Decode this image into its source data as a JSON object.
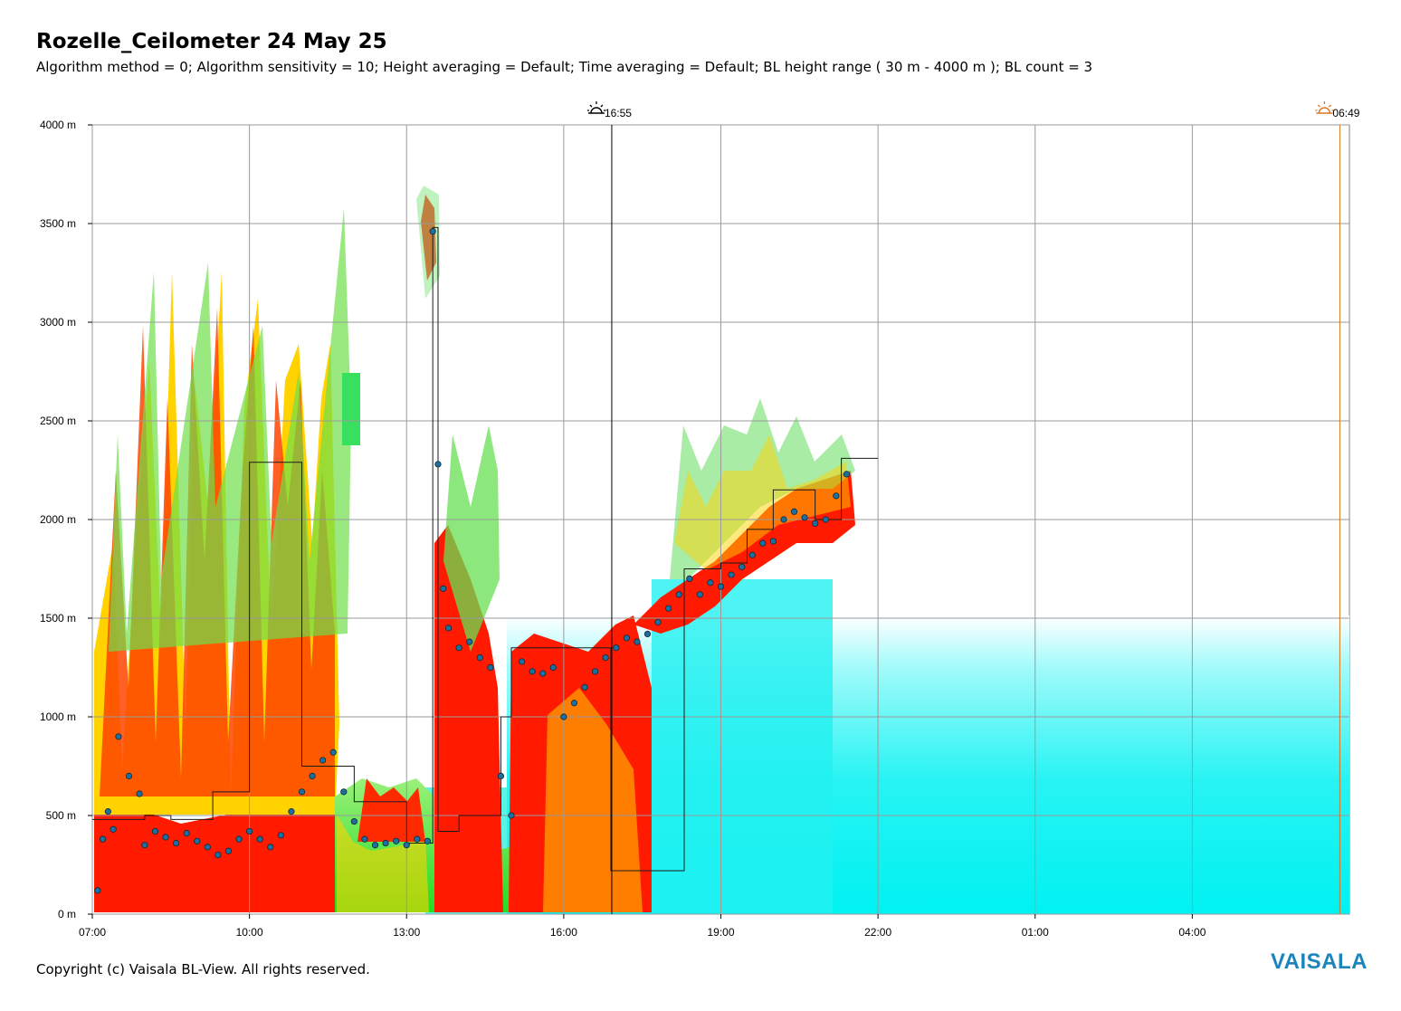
{
  "header": {
    "title": "Rozelle_Ceilometer 24 May 25",
    "subtitle": "Algorithm method = 0; Algorithm sensitivity = 10; Height averaging = Default; Time averaging = Default; BL height range ( 30 m - 4000 m ); BL count = 3"
  },
  "footer": {
    "copyright": "Copyright (c) Vaisala BL-View. All rights reserved.",
    "brand": "VAISALA"
  },
  "chart_data": {
    "type": "heatmap",
    "title": "Rozelle_Ceilometer 24 May 25",
    "xlabel": "",
    "ylabel": "",
    "x_range_hours": [
      7,
      31
    ],
    "ylim": [
      0,
      4000
    ],
    "grid": true,
    "y_ticks": [
      "0 m",
      "500 m",
      "1000 m",
      "1500 m",
      "2000 m",
      "2500 m",
      "3000 m",
      "3500 m",
      "4000 m"
    ],
    "x_ticks": [
      "07:00",
      "10:00",
      "13:00",
      "16:00",
      "19:00",
      "22:00",
      "01:00",
      "04:00"
    ],
    "x_tick_hours": [
      7,
      10,
      13,
      16,
      19,
      22,
      25,
      28
    ],
    "events": [
      {
        "label": "16:55",
        "hour": 16.917,
        "kind": "sunset",
        "color": "#000000"
      },
      {
        "label": "06:49",
        "hour": 30.817,
        "kind": "sunrise",
        "color": "#d9771e"
      }
    ],
    "colors": {
      "strong": "#ff1a00",
      "mid": "#ffd200",
      "weak": "#33e05a",
      "background": "#00f5f5",
      "point": "#1f6f9e"
    },
    "bl_height_points": [
      [
        7.1,
        120
      ],
      [
        7.2,
        380
      ],
      [
        7.3,
        520
      ],
      [
        7.4,
        430
      ],
      [
        7.5,
        900
      ],
      [
        7.7,
        700
      ],
      [
        7.9,
        610
      ],
      [
        8.0,
        350
      ],
      [
        8.2,
        420
      ],
      [
        8.4,
        390
      ],
      [
        8.6,
        360
      ],
      [
        8.8,
        410
      ],
      [
        9.0,
        370
      ],
      [
        9.2,
        340
      ],
      [
        9.4,
        300
      ],
      [
        9.6,
        320
      ],
      [
        9.8,
        380
      ],
      [
        10.0,
        420
      ],
      [
        10.2,
        380
      ],
      [
        10.4,
        340
      ],
      [
        10.6,
        400
      ],
      [
        10.8,
        520
      ],
      [
        11.0,
        620
      ],
      [
        11.2,
        700
      ],
      [
        11.4,
        780
      ],
      [
        11.6,
        820
      ],
      [
        11.8,
        620
      ],
      [
        12.0,
        470
      ],
      [
        12.2,
        380
      ],
      [
        12.4,
        350
      ],
      [
        12.6,
        360
      ],
      [
        12.8,
        370
      ],
      [
        13.0,
        350
      ],
      [
        13.2,
        380
      ],
      [
        13.4,
        370
      ],
      [
        13.5,
        3460
      ],
      [
        13.6,
        2280
      ],
      [
        13.7,
        1650
      ],
      [
        13.8,
        1450
      ],
      [
        14.0,
        1350
      ],
      [
        14.2,
        1380
      ],
      [
        14.4,
        1300
      ],
      [
        14.6,
        1250
      ],
      [
        14.8,
        700
      ],
      [
        15.0,
        500
      ],
      [
        15.2,
        1280
      ],
      [
        15.4,
        1230
      ],
      [
        15.6,
        1220
      ],
      [
        15.8,
        1250
      ],
      [
        16.0,
        1000
      ],
      [
        16.2,
        1070
      ],
      [
        16.4,
        1150
      ],
      [
        16.6,
        1230
      ],
      [
        16.8,
        1300
      ],
      [
        17.0,
        1350
      ],
      [
        17.2,
        1400
      ],
      [
        17.4,
        1380
      ],
      [
        17.6,
        1420
      ],
      [
        17.8,
        1480
      ],
      [
        18.0,
        1550
      ],
      [
        18.2,
        1620
      ],
      [
        18.4,
        1700
      ],
      [
        18.6,
        1620
      ],
      [
        18.8,
        1680
      ],
      [
        19.0,
        1660
      ],
      [
        19.2,
        1720
      ],
      [
        19.4,
        1760
      ],
      [
        19.6,
        1820
      ],
      [
        19.8,
        1880
      ],
      [
        20.0,
        1890
      ],
      [
        20.2,
        2000
      ],
      [
        20.4,
        2040
      ],
      [
        20.6,
        2010
      ],
      [
        20.8,
        1980
      ],
      [
        21.0,
        2000
      ],
      [
        21.2,
        2120
      ],
      [
        21.4,
        2230
      ]
    ],
    "bl_step_line": [
      [
        7.0,
        480
      ],
      [
        8.0,
        500
      ],
      [
        8.5,
        480
      ],
      [
        9.3,
        620
      ],
      [
        10.0,
        2290
      ],
      [
        11.0,
        750
      ],
      [
        12.0,
        570
      ],
      [
        13.0,
        360
      ],
      [
        13.5,
        3480
      ],
      [
        13.6,
        420
      ],
      [
        14.0,
        500
      ],
      [
        14.8,
        1000
      ],
      [
        15.0,
        1350
      ],
      [
        16.0,
        1350
      ],
      [
        16.9,
        220
      ],
      [
        17.6,
        220
      ],
      [
        18.3,
        1750
      ],
      [
        19.0,
        1780
      ],
      [
        19.5,
        1950
      ],
      [
        20.0,
        2150
      ],
      [
        20.8,
        2000
      ],
      [
        21.3,
        2310
      ],
      [
        22.0,
        2310
      ]
    ]
  }
}
